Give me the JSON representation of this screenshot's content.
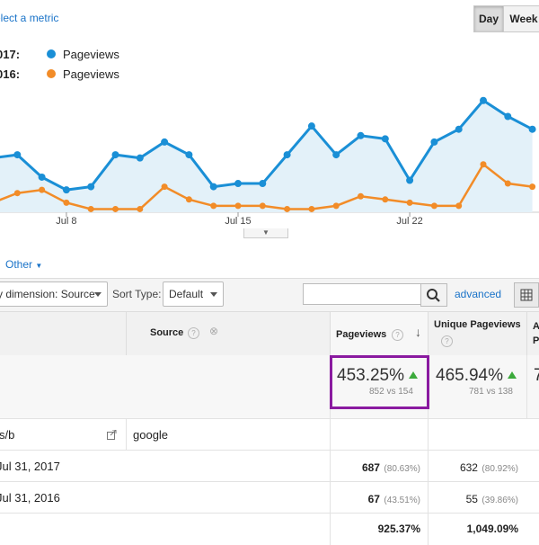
{
  "header": {
    "select_metric": "elect a metric",
    "toggles": [
      "Day",
      "Week"
    ]
  },
  "legend": [
    {
      "year": "017:",
      "label": "Pageviews",
      "color": "#1a8fd6"
    },
    {
      "year": "016:",
      "label": "Pageviews",
      "color": "#f28c28"
    }
  ],
  "chart_data": {
    "type": "line",
    "x_ticks": [
      "Jul 8",
      "Jul 15",
      "Jul 22"
    ],
    "series": [
      {
        "name": "Pageviews",
        "color": "#1a8fd6",
        "values": [
          17,
          18,
          11,
          7,
          8,
          18,
          17,
          22,
          18,
          8,
          9,
          9,
          18,
          27,
          18,
          24,
          23,
          10,
          22,
          26,
          35,
          30,
          26
        ]
      },
      {
        "name": "Pageviews",
        "color": "#f28c28",
        "values": [
          3,
          6,
          7,
          3,
          1,
          1,
          1,
          8,
          4,
          2,
          2,
          2,
          1,
          1,
          2,
          5,
          4,
          3,
          2,
          2,
          15,
          9,
          8
        ]
      }
    ]
  },
  "other_link": "Other",
  "toolbar": {
    "dimension": "y dimension: Source",
    "sort_type_label": "Sort Type:",
    "sort_value": "Default",
    "search_placeholder": "",
    "advanced": "advanced"
  },
  "table": {
    "headers": {
      "source": "Source",
      "pageviews": "Pageviews",
      "unique_pageviews": "Unique Pageviews",
      "next_col": "A\nP"
    },
    "summary": {
      "pageviews_pct": "453.25%",
      "pageviews_cmp": "852 vs 154",
      "unique_pct": "465.94%",
      "unique_cmp": "781 vs 138",
      "next_partial": "7"
    },
    "row1": {
      "page": "s/b",
      "source": "google"
    },
    "rows": [
      {
        "label": "Jul 31, 2017",
        "pageviews": "687",
        "pageviews_pct": "(80.63%)",
        "unique": "632",
        "unique_pct": "(80.92%)"
      },
      {
        "label": "Jul 31, 2016",
        "pageviews": "67",
        "pageviews_pct": "(43.51%)",
        "unique": "55",
        "unique_pct": "(39.86%)"
      }
    ],
    "change": {
      "pageviews": "925.37%",
      "unique": "1,049.09%"
    }
  }
}
